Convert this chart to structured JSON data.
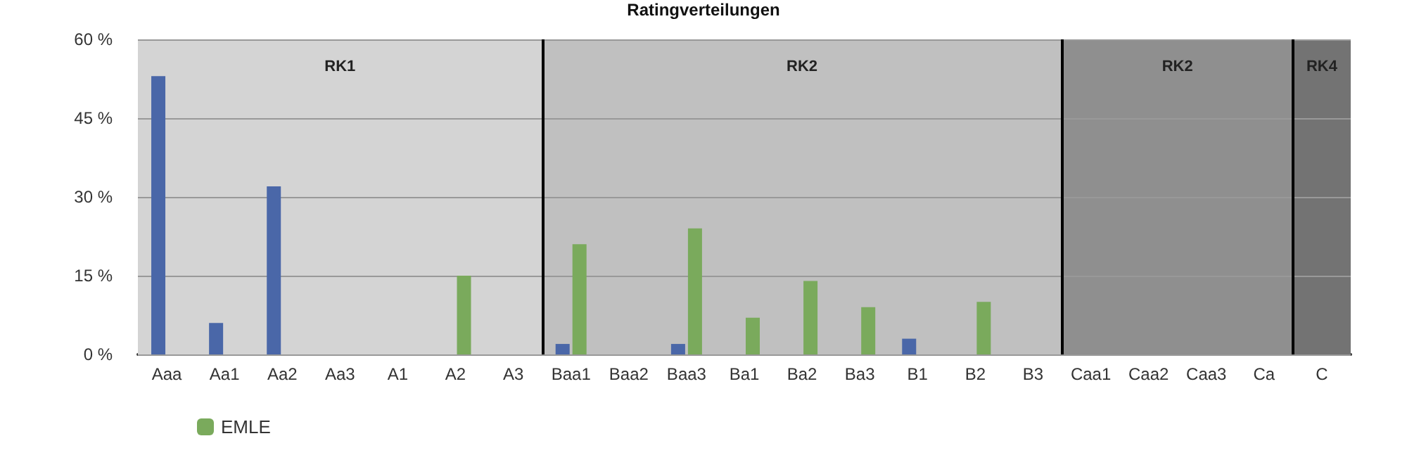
{
  "chart_data": {
    "type": "bar",
    "title": "Ratingverteilungen",
    "categories": [
      "Aaa",
      "Aa1",
      "Aa2",
      "Aa3",
      "A1",
      "A2",
      "A3",
      "Baa1",
      "Baa2",
      "Baa3",
      "Ba1",
      "Ba2",
      "Ba3",
      "B1",
      "B2",
      "B3",
      "Caa1",
      "Caa2",
      "Caa3",
      "Ca",
      "C"
    ],
    "series": [
      {
        "color": "#4a67a8",
        "values": [
          53,
          6,
          32,
          0,
          0,
          0,
          0,
          2,
          0,
          2,
          0,
          0,
          0,
          3,
          0,
          0,
          0,
          0,
          0,
          0,
          0
        ]
      },
      {
        "name": "EMLE",
        "color": "#7aaa5c",
        "values": [
          0,
          0,
          0,
          0,
          0,
          15,
          0,
          21,
          0,
          24,
          7,
          14,
          9,
          0,
          10,
          0,
          0,
          0,
          0,
          0,
          0
        ]
      }
    ],
    "ylim": [
      0,
      60
    ],
    "yticks": [
      {
        "value": 0,
        "label": "0 %"
      },
      {
        "value": 15,
        "label": "15 %"
      },
      {
        "value": 30,
        "label": "30 %"
      },
      {
        "value": 45,
        "label": "45 %"
      },
      {
        "value": 60,
        "label": "60 %"
      }
    ],
    "bands": [
      {
        "axis": "x",
        "from": "Aaa",
        "to": "A3",
        "label": "RK1",
        "color": "#d4d4d4"
      },
      {
        "axis": "x",
        "from": "Baa1",
        "to": "B3",
        "label": "RK2",
        "color": "#c0c0c0"
      },
      {
        "axis": "x",
        "from": "Caa1",
        "to": "Ca",
        "label": "RK2",
        "color": "#8f8f8f"
      },
      {
        "axis": "x",
        "from": "C",
        "to": "C",
        "label": "RK4",
        "color": "#737373"
      }
    ],
    "grid": "y",
    "legend": "bottom left"
  }
}
